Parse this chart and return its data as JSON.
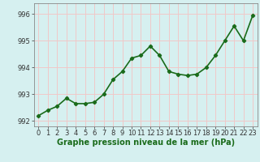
{
  "x": [
    0,
    1,
    2,
    3,
    4,
    5,
    6,
    7,
    8,
    9,
    10,
    11,
    12,
    13,
    14,
    15,
    16,
    17,
    18,
    19,
    20,
    21,
    22,
    23
  ],
  "y": [
    992.2,
    992.4,
    992.55,
    992.85,
    992.65,
    992.65,
    992.7,
    993.0,
    993.55,
    993.85,
    994.35,
    994.45,
    994.8,
    994.45,
    993.85,
    993.75,
    993.7,
    993.75,
    994.0,
    994.45,
    995.0,
    995.55,
    995.0,
    995.95
  ],
  "line_color": "#1a6b1a",
  "marker": "D",
  "marker_size": 2.2,
  "bg_color": "#d6f0f0",
  "grid_color": "#f0c8c8",
  "ylabel_ticks": [
    992,
    993,
    994,
    995,
    996
  ],
  "xlabel_ticks": [
    0,
    1,
    2,
    3,
    4,
    5,
    6,
    7,
    8,
    9,
    10,
    11,
    12,
    13,
    14,
    15,
    16,
    17,
    18,
    19,
    20,
    21,
    22,
    23
  ],
  "xlabel_labels": [
    "0",
    "1",
    "2",
    "3",
    "4",
    "5",
    "6",
    "7",
    "8",
    "9",
    "10",
    "11",
    "12",
    "13",
    "14",
    "15",
    "16",
    "17",
    "18",
    "19",
    "20",
    "21",
    "22",
    "23"
  ],
  "ylim": [
    991.8,
    996.4
  ],
  "xlim": [
    -0.5,
    23.5
  ],
  "xlabel": "Graphe pression niveau de la mer (hPa)",
  "xlabel_fontsize": 7,
  "tick_fontsize": 6,
  "line_width": 1.2
}
